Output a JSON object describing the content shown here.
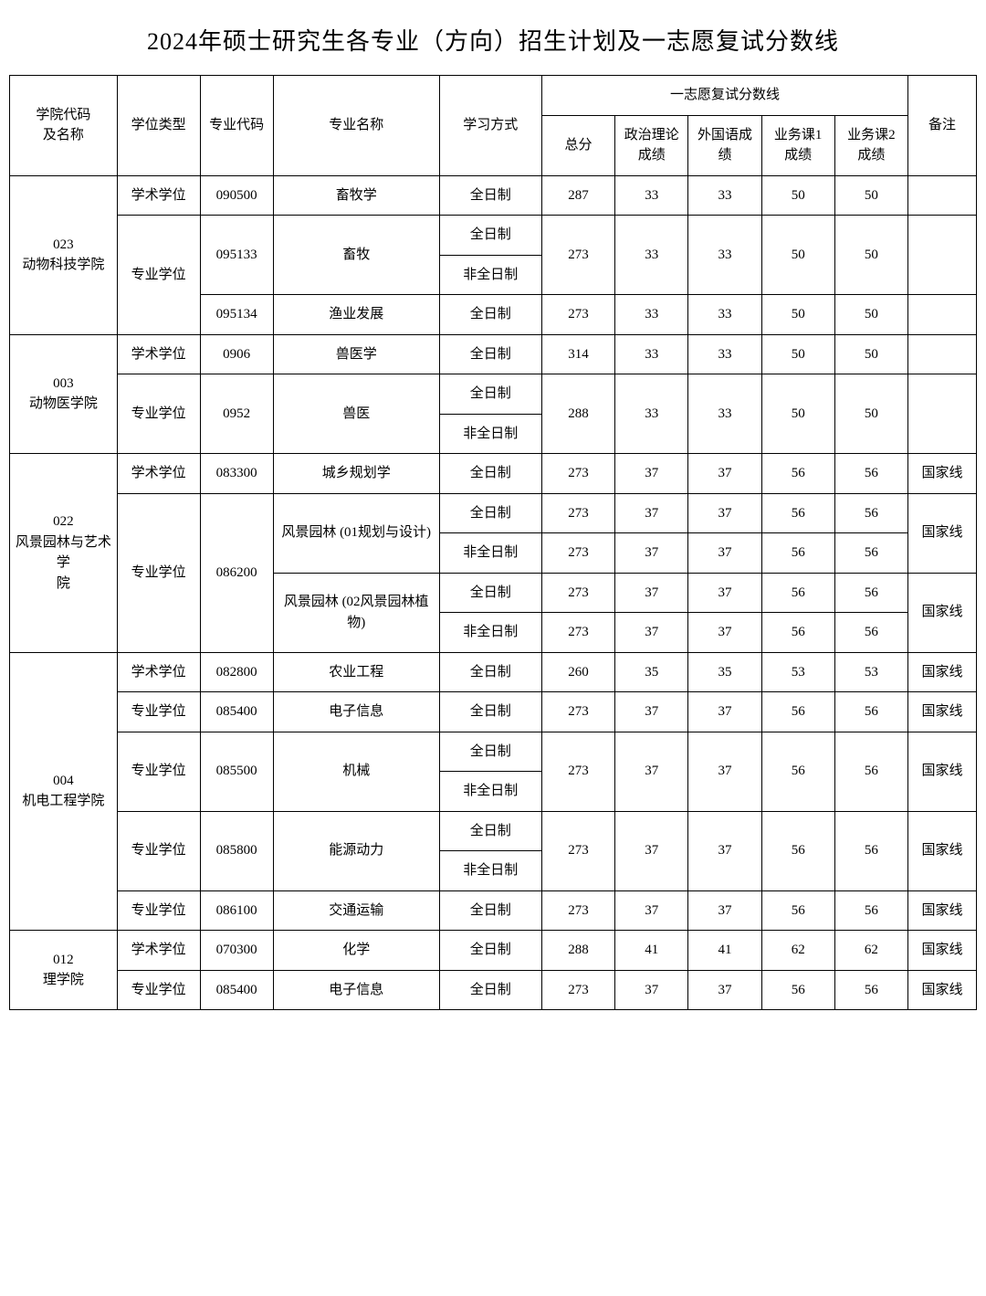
{
  "title": "2024年硕士研究生各专业（方向）招生计划及一志愿复试分数线",
  "headers": {
    "school": "学院代码\n及名称",
    "degree": "学位类型",
    "code": "专业代码",
    "major": "专业名称",
    "mode": "学习方式",
    "score_group": "一志愿复试分数线",
    "total": "总分",
    "politics": "政治理论\n成绩",
    "foreign": "外国语成\n绩",
    "sub1": "业务课1\n成绩",
    "sub2": "业务课2\n成绩",
    "remark": "备注"
  },
  "schools": [
    {
      "id": "023",
      "name_l1": "023",
      "name_l2": "动物科技学院",
      "rowspan": 4,
      "rows": [
        {
          "degree": "学术学位",
          "degree_rowspan": 1,
          "code": "090500",
          "major": "畜牧学",
          "major_rowspan": 1,
          "modes": [
            "全日制"
          ],
          "scores": {
            "total": "287",
            "politics": "33",
            "foreign": "33",
            "sub1": "50",
            "sub2": "50"
          },
          "score_rowspan": 1,
          "remark": "",
          "remark_rowspan": 1
        },
        {
          "degree": "专业学位",
          "degree_rowspan": 3,
          "code": "095133",
          "major": "畜牧",
          "major_rowspan": 2,
          "modes": [
            "全日制",
            "非全日制"
          ],
          "scores": {
            "total": "273",
            "politics": "33",
            "foreign": "33",
            "sub1": "50",
            "sub2": "50"
          },
          "score_rowspan": 2,
          "remark": "",
          "remark_rowspan": 2
        },
        {
          "code": "095134",
          "major": "渔业发展",
          "major_rowspan": 1,
          "modes": [
            "全日制"
          ],
          "scores": {
            "total": "273",
            "politics": "33",
            "foreign": "33",
            "sub1": "50",
            "sub2": "50"
          },
          "score_rowspan": 1,
          "remark": "",
          "remark_rowspan": 1
        }
      ]
    },
    {
      "id": "003",
      "name_l1": "003",
      "name_l2": "动物医学院",
      "rowspan": 3,
      "rows": [
        {
          "degree": "学术学位",
          "degree_rowspan": 1,
          "code": "0906",
          "major": "兽医学",
          "major_rowspan": 1,
          "modes": [
            "全日制"
          ],
          "scores": {
            "total": "314",
            "politics": "33",
            "foreign": "33",
            "sub1": "50",
            "sub2": "50"
          },
          "score_rowspan": 1,
          "remark": "",
          "remark_rowspan": 1
        },
        {
          "degree": "专业学位",
          "degree_rowspan": 2,
          "code": "0952",
          "major": "兽医",
          "major_rowspan": 2,
          "modes": [
            "全日制",
            "非全日制"
          ],
          "scores": {
            "total": "288",
            "politics": "33",
            "foreign": "33",
            "sub1": "50",
            "sub2": "50"
          },
          "score_rowspan": 2,
          "remark": "",
          "remark_rowspan": 2
        }
      ]
    },
    {
      "id": "022",
      "name_l1": "022",
      "name_l2": "风景园林与艺术学\n院",
      "rowspan": 5,
      "rows": [
        {
          "degree": "学术学位",
          "degree_rowspan": 1,
          "code": "083300",
          "major": "城乡规划学",
          "major_rowspan": 1,
          "modes": [
            "全日制"
          ],
          "scores": {
            "total": "273",
            "politics": "37",
            "foreign": "37",
            "sub1": "56",
            "sub2": "56"
          },
          "score_rowspan": 1,
          "remark": "国家线",
          "remark_rowspan": 1
        },
        {
          "degree": "专业学位",
          "degree_rowspan": 4,
          "code": "086200",
          "code_rowspan": 4,
          "major": "风景园林 (01规划与设计)",
          "major_rowspan": 2,
          "modes": [
            "全日制"
          ],
          "scores": {
            "total": "273",
            "politics": "37",
            "foreign": "37",
            "sub1": "56",
            "sub2": "56"
          },
          "score_rowspan": 1,
          "remark": "国家线",
          "remark_rowspan": 2
        },
        {
          "modes": [
            "非全日制"
          ],
          "scores": {
            "total": "273",
            "politics": "37",
            "foreign": "37",
            "sub1": "56",
            "sub2": "56"
          },
          "score_rowspan": 1
        },
        {
          "major": "风景园林 (02风景园林植\n物)",
          "major_rowspan": 2,
          "modes": [
            "全日制"
          ],
          "scores": {
            "total": "273",
            "politics": "37",
            "foreign": "37",
            "sub1": "56",
            "sub2": "56"
          },
          "score_rowspan": 1,
          "remark": "国家线",
          "remark_rowspan": 2
        },
        {
          "modes": [
            "非全日制"
          ],
          "scores": {
            "total": "273",
            "politics": "37",
            "foreign": "37",
            "sub1": "56",
            "sub2": "56"
          },
          "score_rowspan": 1
        }
      ]
    },
    {
      "id": "004",
      "name_l1": "004",
      "name_l2": "机电工程学院",
      "rowspan": 7,
      "rows": [
        {
          "degree": "学术学位",
          "degree_rowspan": 1,
          "code": "082800",
          "major": "农业工程",
          "major_rowspan": 1,
          "modes": [
            "全日制"
          ],
          "scores": {
            "total": "260",
            "politics": "35",
            "foreign": "35",
            "sub1": "53",
            "sub2": "53"
          },
          "score_rowspan": 1,
          "remark": "国家线",
          "remark_rowspan": 1
        },
        {
          "degree": "专业学位",
          "degree_rowspan": 1,
          "code": "085400",
          "major": "电子信息",
          "major_rowspan": 1,
          "modes": [
            "全日制"
          ],
          "scores": {
            "total": "273",
            "politics": "37",
            "foreign": "37",
            "sub1": "56",
            "sub2": "56"
          },
          "score_rowspan": 1,
          "remark": "国家线",
          "remark_rowspan": 1
        },
        {
          "degree": "专业学位",
          "degree_rowspan": 2,
          "code": "085500",
          "major": "机械",
          "major_rowspan": 2,
          "modes": [
            "全日制",
            "非全日制"
          ],
          "scores": {
            "total": "273",
            "politics": "37",
            "foreign": "37",
            "sub1": "56",
            "sub2": "56"
          },
          "score_rowspan": 2,
          "remark": "国家线",
          "remark_rowspan": 2
        },
        {
          "degree": "专业学位",
          "degree_rowspan": 2,
          "code": "085800",
          "major": "能源动力",
          "major_rowspan": 2,
          "modes": [
            "全日制",
            "非全日制"
          ],
          "scores": {
            "total": "273",
            "politics": "37",
            "foreign": "37",
            "sub1": "56",
            "sub2": "56"
          },
          "score_rowspan": 2,
          "remark": "国家线",
          "remark_rowspan": 2
        },
        {
          "degree": "专业学位",
          "degree_rowspan": 1,
          "code": "086100",
          "major": "交通运输",
          "major_rowspan": 1,
          "modes": [
            "全日制"
          ],
          "scores": {
            "total": "273",
            "politics": "37",
            "foreign": "37",
            "sub1": "56",
            "sub2": "56"
          },
          "score_rowspan": 1,
          "remark": "国家线",
          "remark_rowspan": 1
        }
      ]
    },
    {
      "id": "012",
      "name_l1": "012",
      "name_l2": "理学院",
      "rowspan": 2,
      "rows": [
        {
          "degree": "学术学位",
          "degree_rowspan": 1,
          "code": "070300",
          "major": "化学",
          "major_rowspan": 1,
          "modes": [
            "全日制"
          ],
          "scores": {
            "total": "288",
            "politics": "41",
            "foreign": "41",
            "sub1": "62",
            "sub2": "62"
          },
          "score_rowspan": 1,
          "remark": "国家线",
          "remark_rowspan": 1
        },
        {
          "degree": "专业学位",
          "degree_rowspan": 1,
          "code": "085400",
          "major": "电子信息",
          "major_rowspan": 1,
          "modes": [
            "全日制"
          ],
          "scores": {
            "total": "273",
            "politics": "37",
            "foreign": "37",
            "sub1": "56",
            "sub2": "56"
          },
          "score_rowspan": 1,
          "remark": "国家线",
          "remark_rowspan": 1
        }
      ]
    }
  ]
}
